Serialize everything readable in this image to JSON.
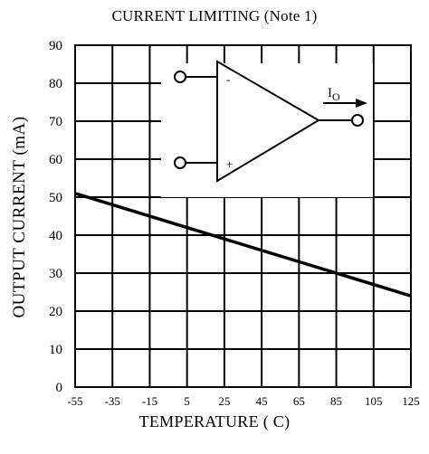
{
  "chart_data": {
    "type": "line",
    "title": "CURRENT LIMITING (Note 1)",
    "xlabel": "TEMPERATURE ( C)",
    "ylabel": "OUTPUT CURRENT (mA)",
    "xlim": [
      -55,
      125
    ],
    "ylim": [
      0,
      90
    ],
    "x_ticks": [
      -55,
      -35,
      -15,
      5,
      25,
      45,
      65,
      85,
      105,
      125
    ],
    "y_ticks": [
      0,
      10,
      20,
      30,
      40,
      50,
      60,
      70,
      80,
      90
    ],
    "grid": true,
    "series": [
      {
        "x": [
          -55,
          125
        ],
        "y": [
          51,
          24
        ]
      }
    ],
    "inset": {
      "type": "op-amp-schematic",
      "inverting_label": "-",
      "noninverting_label": "+",
      "output_label": "I",
      "output_subscript": "O"
    }
  }
}
